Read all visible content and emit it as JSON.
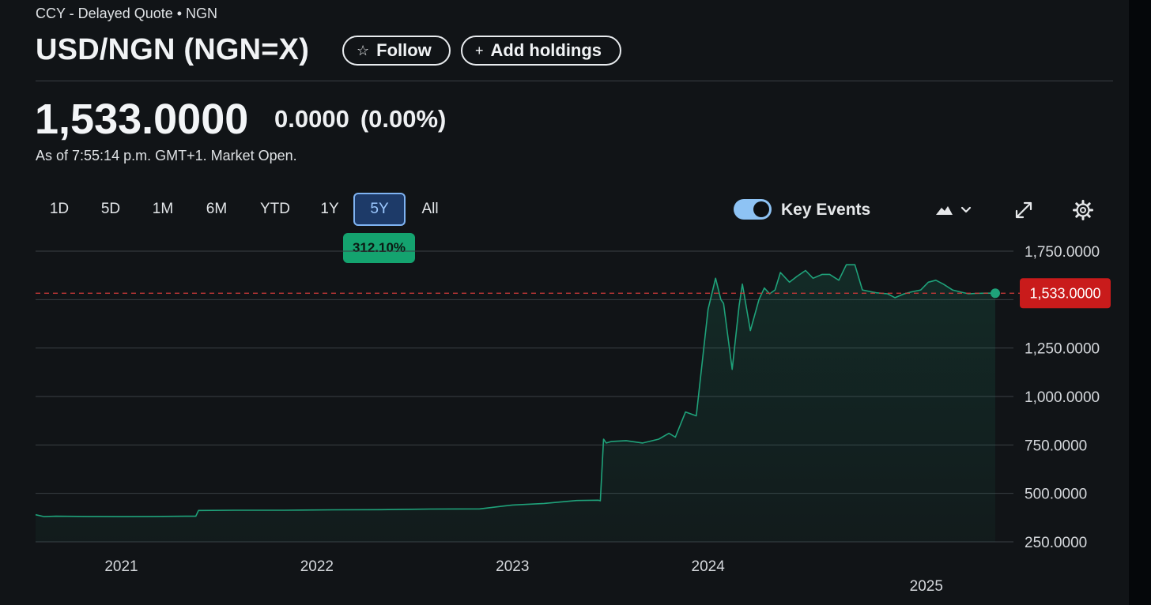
{
  "header": {
    "exchange_line": "CCY - Delayed Quote • NGN",
    "title": "USD/NGN (NGN=X)",
    "follow_label": "Follow",
    "add_holdings_label": "Add holdings"
  },
  "quote": {
    "price": "1,533.0000",
    "change": "0.0000",
    "change_pct": "(0.00%)",
    "as_of": "As of 7:55:14 p.m. GMT+1. Market Open."
  },
  "toolbar": {
    "ranges": [
      "1D",
      "5D",
      "1M",
      "6M",
      "YTD",
      "1Y",
      "5Y",
      "All"
    ],
    "active_range": "5Y",
    "performance_badge": "312.10%",
    "key_events_label": "Key Events",
    "key_events_on": true,
    "icons": [
      "mountain-chart-icon",
      "chevron-down-icon",
      "expand-icon",
      "gear-icon"
    ]
  },
  "colors": {
    "line": "#1fa27a",
    "current_tag": "#c91b1b",
    "badge": "#14a36f",
    "active_range": "#1d3a68"
  },
  "chart_data": {
    "type": "area",
    "y_ticks": [
      "1,750.0000",
      "1,250.0000",
      "1,000.0000",
      "750.0000",
      "500.0000",
      "250.0000"
    ],
    "y_tick_values": [
      1750,
      1250,
      1000,
      750,
      500,
      250
    ],
    "x_tick_labels": [
      "2021",
      "2022",
      "2023",
      "2024",
      "2025"
    ],
    "current_value": 1533,
    "current_label": "1,533.0000",
    "ylim": [
      250,
      1750
    ],
    "grid": true,
    "series": [
      {
        "x": [
          "2020-07-25",
          "2020-08-10",
          "2020-09-01",
          "2020-11-01",
          "2021-01-01",
          "2021-03-01",
          "2021-05-01",
          "2021-05-20",
          "2021-05-25",
          "2021-08-01",
          "2021-11-01",
          "2022-02-01",
          "2022-05-01",
          "2022-08-01",
          "2022-11-01",
          "2023-01-01",
          "2023-03-01",
          "2023-05-01",
          "2023-06-10",
          "2023-06-14",
          "2023-06-20",
          "2023-06-25",
          "2023-07-05",
          "2023-08-01",
          "2023-09-01",
          "2023-10-01",
          "2023-10-20",
          "2023-11-01",
          "2023-11-20",
          "2023-12-10",
          "2024-01-01",
          "2024-01-15",
          "2024-01-25",
          "2024-01-30",
          "2024-02-15",
          "2024-02-28",
          "2024-03-05",
          "2024-03-20",
          "2024-04-05",
          "2024-04-15",
          "2024-04-25",
          "2024-05-05",
          "2024-05-15",
          "2024-06-01",
          "2024-06-15",
          "2024-07-01",
          "2024-07-15",
          "2024-08-01",
          "2024-08-15",
          "2024-09-01",
          "2024-09-15",
          "2024-10-01",
          "2024-10-15",
          "2024-11-01",
          "2024-11-10",
          "2024-12-01",
          "2024-12-15",
          "2025-01-01",
          "2025-01-15",
          "2025-02-01",
          "2025-02-15",
          "2025-03-01",
          "2025-03-15",
          "2025-04-01",
          "2025-04-15",
          "2025-05-01",
          "2025-05-15",
          "2025-06-01",
          "2025-06-20"
        ],
        "values": [
          390,
          380,
          382,
          381,
          380,
          381,
          382,
          382,
          412,
          413,
          413,
          415,
          416,
          419,
          420,
          440,
          448,
          463,
          465,
          462,
          780,
          760,
          768,
          772,
          760,
          780,
          810,
          790,
          920,
          900,
          1450,
          1610,
          1500,
          1480,
          1140,
          1470,
          1580,
          1340,
          1500,
          1560,
          1530,
          1550,
          1640,
          1590,
          1620,
          1650,
          1610,
          1630,
          1630,
          1600,
          1680,
          1680,
          1550,
          1540,
          1535,
          1530,
          1510,
          1530,
          1540,
          1550,
          1590,
          1600,
          1580,
          1550,
          1540,
          1530,
          1532,
          1533,
          1533
        ]
      }
    ]
  }
}
